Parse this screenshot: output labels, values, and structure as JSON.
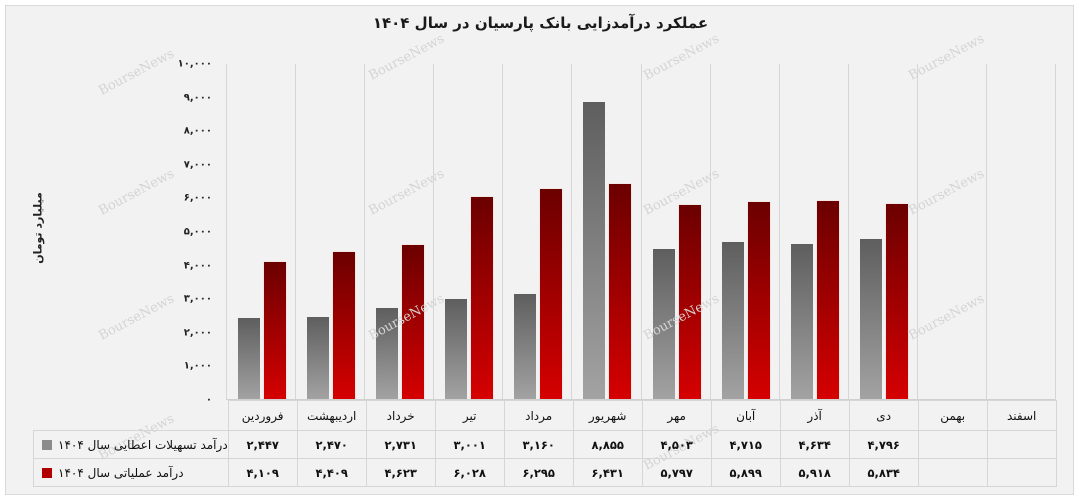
{
  "title": "عملکرد درآمدزایی بانک پارسیان در سال ۱۴۰۴",
  "y_axis_label": "میلیارد تومان",
  "y_ticks": [
    "۰",
    "۱,۰۰۰",
    "۲,۰۰۰",
    "۳,۰۰۰",
    "۴,۰۰۰",
    "۵,۰۰۰",
    "۶,۰۰۰",
    "۷,۰۰۰",
    "۸,۰۰۰",
    "۹,۰۰۰",
    "۱۰,۰۰۰"
  ],
  "watermark": "BourseNews",
  "colors": {
    "series1": "#808080",
    "series2": "#b00000",
    "background": "#f2f2f2"
  },
  "months": [
    "فروردین",
    "اردیبهشت",
    "خرداد",
    "تیر",
    "مرداد",
    "شهریور",
    "مهر",
    "آبان",
    "آذر",
    "دی",
    "بهمن",
    "اسفند"
  ],
  "legend": [
    {
      "label": "درآمد تسهیلات اعطایی سال ۱۴۰۴",
      "color": "#8c8c8c"
    },
    {
      "label": "درآمد عملیاتی سال ۱۴۰۴",
      "color": "#b00000"
    }
  ],
  "table": {
    "row1": [
      "۲,۴۴۷",
      "۲,۴۷۰",
      "۲,۷۳۱",
      "۳,۰۰۱",
      "۳,۱۶۰",
      "۸,۸۵۵",
      "۴,۵۰۳",
      "۴,۷۱۵",
      "۴,۶۳۴",
      "۴,۷۹۶",
      "",
      ""
    ],
    "row2": [
      "۴,۱۰۹",
      "۴,۴۰۹",
      "۴,۶۲۳",
      "۶,۰۲۸",
      "۶,۲۹۵",
      "۶,۴۳۱",
      "۵,۷۹۷",
      "۵,۸۹۹",
      "۵,۹۱۸",
      "۵,۸۳۴",
      "",
      ""
    ]
  },
  "chart_data": {
    "type": "bar",
    "title": "عملکرد درآمدزایی بانک پارسیان در سال ۱۴۰۴",
    "xlabel": "",
    "ylabel": "میلیارد تومان",
    "ylim": [
      0,
      10000
    ],
    "y_tick_step": 1000,
    "grid": "vertical category separators",
    "legend_position": "bottom data table",
    "categories": [
      "فروردین",
      "اردیبهشت",
      "خرداد",
      "تیر",
      "مرداد",
      "شهریور",
      "مهر",
      "آبان",
      "آذر",
      "دی",
      "بهمن",
      "اسفند"
    ],
    "series": [
      {
        "name": "درآمد تسهیلات اعطایی سال ۱۴۰۴",
        "values": [
          2447,
          2470,
          2731,
          3001,
          3160,
          8855,
          4503,
          4715,
          4634,
          4796,
          null,
          null
        ]
      },
      {
        "name": "درآمد عملیاتی سال ۱۴۰۴",
        "values": [
          4109,
          4409,
          4623,
          6028,
          6295,
          6431,
          5797,
          5899,
          5918,
          5834,
          null,
          null
        ]
      }
    ]
  }
}
